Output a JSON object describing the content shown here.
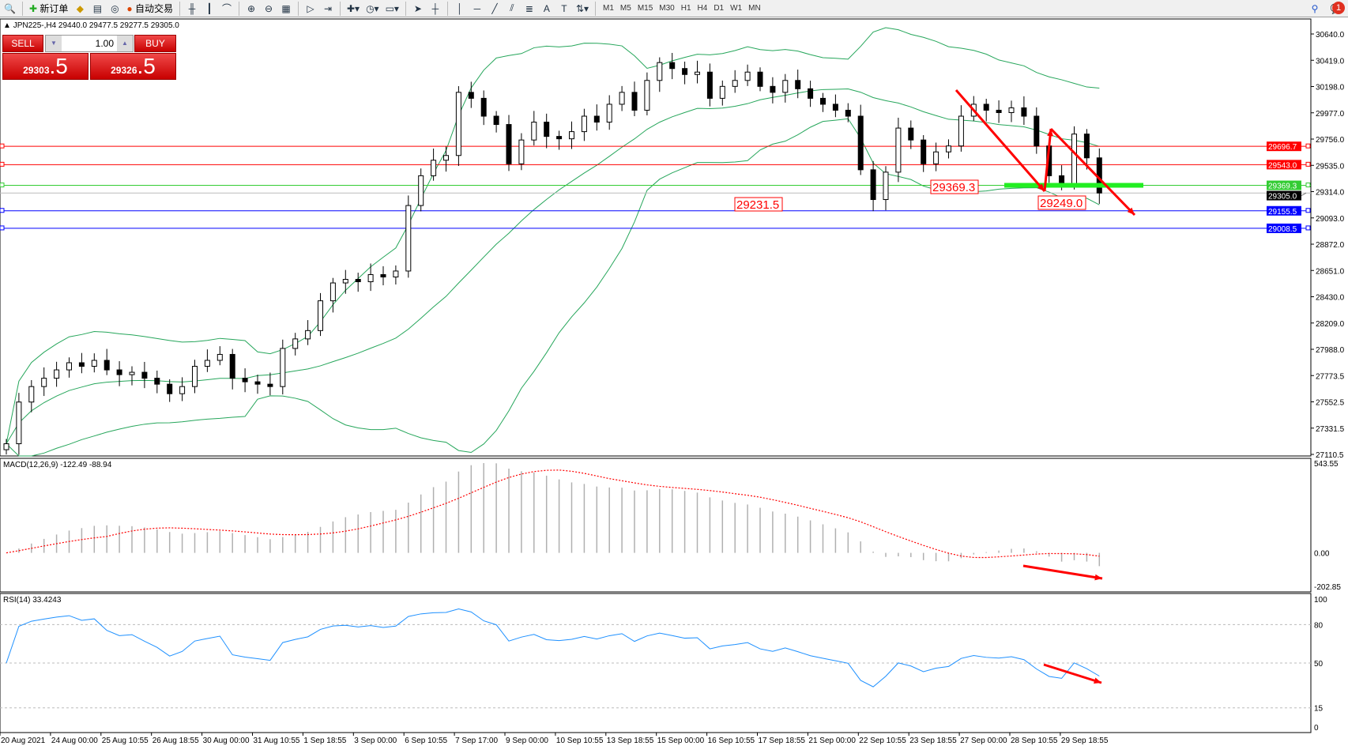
{
  "toolbar": {
    "new_order": "新订单",
    "auto_trading": "自动交易",
    "timeframes": [
      "M1",
      "M5",
      "M15",
      "M30",
      "H1",
      "H4",
      "D1",
      "W1",
      "MN"
    ],
    "notification_count": "1"
  },
  "chart": {
    "header": "JPN225-,H4  29440.0 29477.5 29277.5 29305.0",
    "sell_label": "SELL",
    "buy_label": "BUY",
    "lot": "1.00",
    "sell_price_main": "29303",
    "sell_price_frac": ".5",
    "buy_price_main": "29326",
    "buy_price_frac": ".5",
    "macd_label": "MACD(12,26,9) -122.49 -88.94",
    "rsi_label": "RSI(14) 33.4243"
  },
  "chart_data": {
    "type": "candlestick",
    "symbol": "JPN225-",
    "timeframe": "H4",
    "closes": [
      27200,
      27550,
      27680,
      27750,
      27820,
      27880,
      27850,
      27900,
      27820,
      27780,
      27800,
      27750,
      27700,
      27620,
      27680,
      27850,
      27900,
      27950,
      27750,
      27720,
      27700,
      27680,
      28000,
      28080,
      28150,
      28400,
      28550,
      28580,
      28560,
      28620,
      28600,
      28650,
      29200,
      29450,
      29580,
      29620,
      30150,
      30100,
      29950,
      29880,
      29550,
      29750,
      29900,
      29780,
      29760,
      29820,
      29950,
      29900,
      30050,
      30150,
      30000,
      30250,
      30400,
      30350,
      30300,
      30320,
      30100,
      30200,
      30250,
      30320,
      30200,
      30150,
      30250,
      30180,
      30100,
      30050,
      30000,
      29950,
      29500,
      29250,
      29480,
      29850,
      29750,
      29550,
      29650,
      29700,
      29950,
      30050,
      30000,
      29980,
      30020,
      29950,
      29700,
      29450,
      29380,
      29800,
      29600,
      29305
    ],
    "price_ticks": [
      "30640.0",
      "30419.0",
      "30198.0",
      "29977.0",
      "29756.0",
      "29535.0",
      "29314.0",
      "29093.0",
      "28872.0",
      "28651.0",
      "28430.0",
      "28209.0",
      "27988.0",
      "27773.5",
      "27552.5",
      "27331.5",
      "27110.5"
    ],
    "price_range": [
      27110.5,
      30640.0
    ],
    "levels": [
      {
        "price": 29696.7,
        "label": "29696.7",
        "color": "#ff0000"
      },
      {
        "price": 29543.0,
        "label": "29543.0",
        "color": "#ff0000"
      },
      {
        "price": 29369.3,
        "label": "29369.3",
        "color": "#33cc33"
      },
      {
        "price": 29305.0,
        "label": "29305.0",
        "color": "#000000"
      },
      {
        "price": 29155.5,
        "label": "29155.5",
        "color": "#0000ff"
      },
      {
        "price": 29008.5,
        "label": "29008.5",
        "color": "#0000ff"
      }
    ],
    "annotations": [
      "29231.5",
      "29369.3",
      "29249.0"
    ],
    "macd_ticks": [
      "543.55",
      "0.00",
      "-202.85"
    ],
    "macd_range": [
      -202.85,
      543.55
    ],
    "rsi_ticks": [
      "100",
      "80",
      "50",
      "15",
      "0"
    ],
    "time_labels": [
      "20 Aug 2021",
      "24 Aug 00:00",
      "25 Aug 10:55",
      "26 Aug 18:55",
      "30 Aug 00:00",
      "31 Aug 10:55",
      "1 Sep 18:55",
      "3 Sep 00:00",
      "6 Sep 10:55",
      "7 Sep 17:00",
      "9 Sep 00:00",
      "10 Sep 10:55",
      "13 Sep 18:55",
      "15 Sep 00:00",
      "16 Sep 10:55",
      "17 Sep 18:55",
      "21 Sep 00:00",
      "22 Sep 10:55",
      "23 Sep 18:55",
      "27 Sep 00:00",
      "28 Sep 10:55",
      "29 Sep 18:55"
    ],
    "colors": {
      "bands": "#26a65b",
      "macd_signal": "#ff0000",
      "macd_hist": "#b0b0b0",
      "rsi": "#1e90ff",
      "arrows": "#ff0000"
    }
  }
}
